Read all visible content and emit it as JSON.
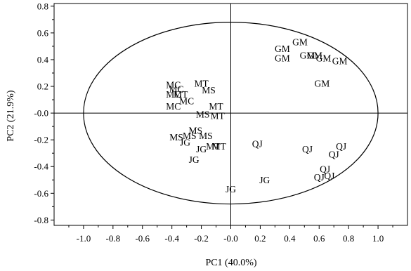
{
  "chart_data": {
    "type": "scatter",
    "title": "",
    "xlabel": "PC1 (40.0%)",
    "ylabel": "PC2 (21.9%)",
    "xlim": [
      -1.2,
      1.2
    ],
    "ylim": [
      -0.84,
      0.82
    ],
    "xticks": [
      -1.0,
      -0.8,
      -0.6,
      -0.4,
      -0.2,
      0.0,
      0.2,
      0.4,
      0.6,
      0.8,
      1.0
    ],
    "xtick_labels": [
      "-1.0",
      "-0.8",
      "-0.6",
      "-0.4",
      "-0.2",
      "-0.0",
      "0.2",
      "0.4",
      "0.6",
      "0.8",
      "1.0"
    ],
    "yticks": [
      0.8,
      0.6,
      0.4,
      0.2,
      0.0,
      -0.2,
      -0.4,
      -0.6,
      -0.8
    ],
    "ytick_labels": [
      "0.8",
      "0.6",
      "0.4",
      "0.2",
      "-0.0",
      "-0.2",
      "-0.4",
      "-0.6",
      "-0.8"
    ],
    "grid": false,
    "reference_lines": {
      "x": 0,
      "y": 0
    },
    "confidence_ellipse": {
      "center": [
        0,
        0
      ],
      "rx": 1.0,
      "ry": 0.68
    },
    "points": [
      {
        "label": "GM",
        "x": 0.47,
        "y": 0.53
      },
      {
        "label": "GM",
        "x": 0.35,
        "y": 0.48
      },
      {
        "label": "GM",
        "x": 0.35,
        "y": 0.41
      },
      {
        "label": "GM",
        "x": 0.52,
        "y": 0.43
      },
      {
        "label": "GM",
        "x": 0.57,
        "y": 0.43
      },
      {
        "label": "GM",
        "x": 0.63,
        "y": 0.41
      },
      {
        "label": "GM",
        "x": 0.74,
        "y": 0.39
      },
      {
        "label": "GM",
        "x": 0.62,
        "y": 0.22
      },
      {
        "label": "MC",
        "x": -0.39,
        "y": 0.21
      },
      {
        "label": "MC",
        "x": -0.37,
        "y": 0.18
      },
      {
        "label": "MC",
        "x": -0.39,
        "y": 0.14
      },
      {
        "label": "MC",
        "x": -0.3,
        "y": 0.09
      },
      {
        "label": "MC",
        "x": -0.39,
        "y": 0.05
      },
      {
        "label": "MT",
        "x": -0.2,
        "y": 0.22
      },
      {
        "label": "MS",
        "x": -0.15,
        "y": 0.17
      },
      {
        "label": "MT",
        "x": -0.34,
        "y": 0.14
      },
      {
        "label": "MT",
        "x": -0.1,
        "y": 0.05
      },
      {
        "label": "MS",
        "x": -0.19,
        "y": -0.01
      },
      {
        "label": "MT",
        "x": -0.09,
        "y": -0.02
      },
      {
        "label": "MS",
        "x": -0.24,
        "y": -0.13
      },
      {
        "label": "MS",
        "x": -0.37,
        "y": -0.18
      },
      {
        "label": "MS",
        "x": -0.28,
        "y": -0.17
      },
      {
        "label": "MS",
        "x": -0.17,
        "y": -0.17
      },
      {
        "label": "JG",
        "x": -0.31,
        "y": -0.22
      },
      {
        "label": "JG",
        "x": -0.2,
        "y": -0.27
      },
      {
        "label": "MT",
        "x": -0.12,
        "y": -0.25
      },
      {
        "label": "MT",
        "x": -0.08,
        "y": -0.25
      },
      {
        "label": "JG",
        "x": -0.25,
        "y": -0.35
      },
      {
        "label": "JG",
        "x": 0.0,
        "y": -0.57
      },
      {
        "label": "JG",
        "x": 0.23,
        "y": -0.5
      },
      {
        "label": "QJ",
        "x": 0.18,
        "y": -0.23
      },
      {
        "label": "QJ",
        "x": 0.52,
        "y": -0.27
      },
      {
        "label": "QJ",
        "x": 0.75,
        "y": -0.25
      },
      {
        "label": "QJ",
        "x": 0.7,
        "y": -0.31
      },
      {
        "label": "QJ",
        "x": 0.64,
        "y": -0.42
      },
      {
        "label": "QJ",
        "x": 0.6,
        "y": -0.48
      },
      {
        "label": "QJ",
        "x": 0.67,
        "y": -0.47
      }
    ]
  }
}
